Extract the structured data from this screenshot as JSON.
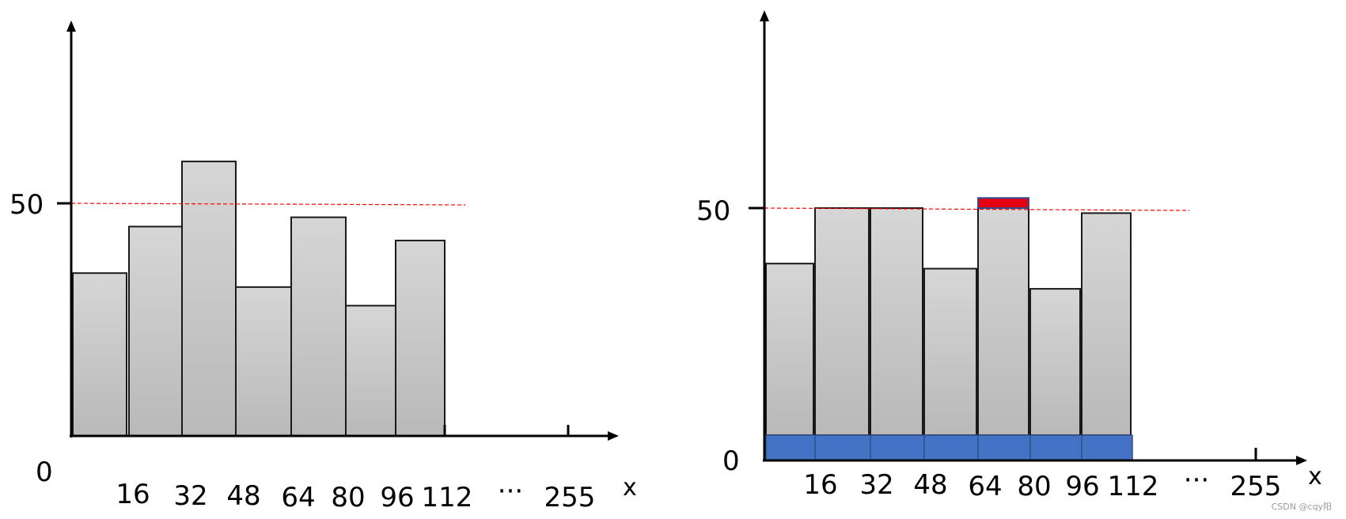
{
  "chart_data": [
    {
      "type": "bar",
      "categories": [
        "0-16",
        "16-32",
        "32-48",
        "48-64",
        "64-80",
        "80-96",
        "96-112"
      ],
      "values": [
        35,
        45,
        59,
        32,
        47,
        28,
        42
      ],
      "x_tick_labels": [
        "16",
        "32",
        "48",
        "64",
        "80",
        "96",
        "112",
        "···",
        "255"
      ],
      "y_tick_labels": [
        "0",
        "50"
      ],
      "xlabel": "x",
      "ylabel": "",
      "ylim": [
        0,
        85
      ],
      "threshold": 50,
      "threshold_color": "#ff0000",
      "bar_color": "#c8c8c8"
    },
    {
      "type": "bar",
      "categories": [
        "0-16",
        "16-32",
        "32-48",
        "48-64",
        "64-80",
        "80-96",
        "96-112"
      ],
      "values": [
        39,
        50,
        50.5,
        38,
        52,
        34,
        49
      ],
      "base_values": [
        5,
        5,
        5,
        5,
        5,
        5,
        5
      ],
      "x_tick_labels": [
        "16",
        "32",
        "48",
        "64",
        "80",
        "96",
        "112",
        "···",
        "255"
      ],
      "y_tick_labels": [
        "0",
        "50"
      ],
      "xlabel": "x",
      "ylabel": "",
      "ylim": [
        0,
        90
      ],
      "threshold": 50,
      "threshold_color": "#ff0000",
      "bar_color": "#c8c8c8",
      "base_color": "#4472c4",
      "excess_color": "#e60012"
    }
  ],
  "watermark": "CSDN @cqy阳"
}
